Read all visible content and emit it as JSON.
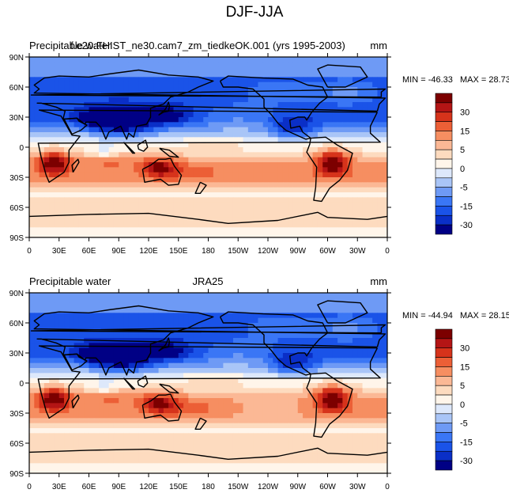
{
  "title": "DJF-JJA",
  "scale_colors": [
    "#000085",
    "#0a2fc7",
    "#1a53e8",
    "#3a76f5",
    "#6e9af5",
    "#a9c5f7",
    "#dde8fb",
    "#fff5ea",
    "#fddbbf",
    "#fbb895",
    "#f68e61",
    "#ec5f36",
    "#d6331b",
    "#b41515",
    "#7c0000"
  ],
  "chart_data": [
    {
      "type": "heatmap",
      "left_title": "Precipitable water",
      "center_title": "f.e20.FHIST_ne30.cam7_zm_tiedkeOK.001 (yrs 1995-2003)",
      "units": "mm",
      "min_label": "MIN = -46.33",
      "max_label": "MAX =  28.73",
      "min": -46.33,
      "max": 28.73,
      "x_ticks": [
        "0",
        "30E",
        "60E",
        "90E",
        "120E",
        "150E",
        "180",
        "150W",
        "120W",
        "90W",
        "60W",
        "30W",
        "0"
      ],
      "y_ticks": [
        "90N",
        "60N",
        "30N",
        "0",
        "30S",
        "60S",
        "90S"
      ],
      "colorbar_labels": [
        "30",
        "15",
        "5",
        "0",
        "-5",
        "-15",
        "-30"
      ]
    },
    {
      "type": "heatmap",
      "left_title": "Precipitable water",
      "center_title": "JRA25",
      "units": "mm",
      "min_label": "MIN = -44.94",
      "max_label": "MAX =  28.15",
      "min": -44.94,
      "max": 28.15,
      "x_ticks": [
        "0",
        "30E",
        "60E",
        "90E",
        "120E",
        "150E",
        "180",
        "150W",
        "120W",
        "90W",
        "60W",
        "30W",
        "0"
      ],
      "y_ticks": [
        "90N",
        "60N",
        "30N",
        "0",
        "30S",
        "60S",
        "90S"
      ],
      "colorbar_labels": [
        "30",
        "15",
        "5",
        "0",
        "-5",
        "-15",
        "-30"
      ]
    }
  ]
}
